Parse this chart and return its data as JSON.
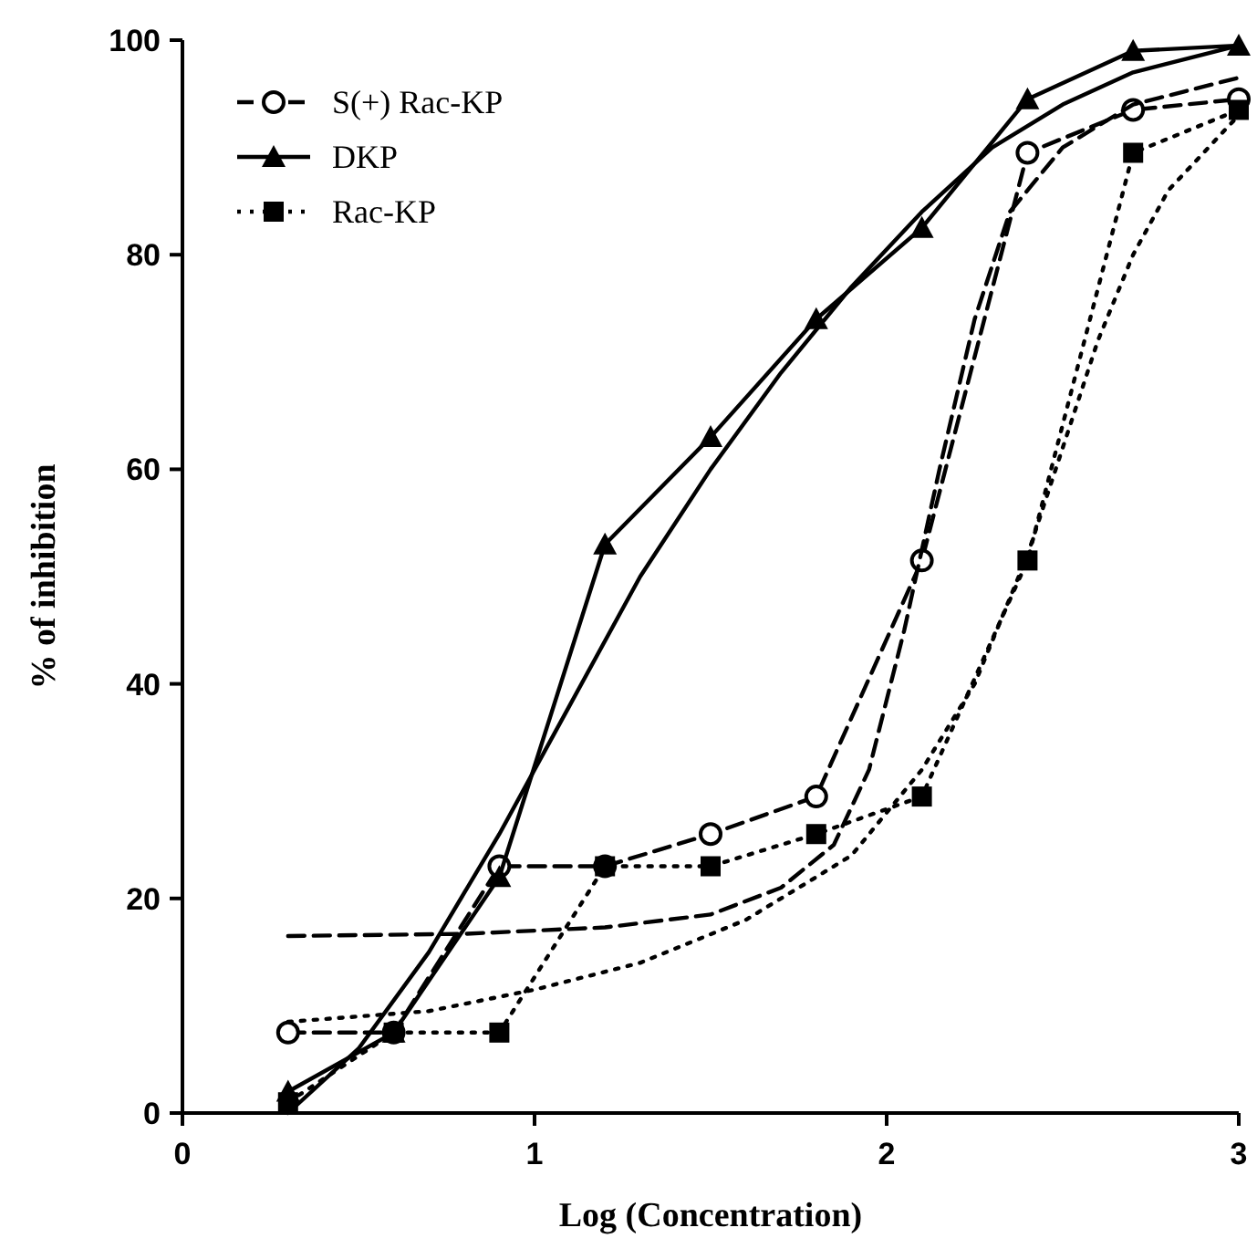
{
  "chart_data": {
    "type": "line",
    "xlabel": "Log (Concentration)",
    "ylabel": "% of inhibition",
    "xlim": [
      0,
      3
    ],
    "xticks": [
      0,
      1,
      2,
      3
    ],
    "ylim": [
      0,
      100
    ],
    "yticks": [
      0,
      20,
      40,
      60,
      80,
      100
    ],
    "grid": false,
    "legend": "top left",
    "series": [
      {
        "name": "S(+) Rac-KP",
        "color": "#000000",
        "marker": "circle",
        "line_style": "dashed",
        "x": [
          0.3,
          0.6,
          0.9,
          1.2,
          1.5,
          1.8,
          2.1,
          2.4,
          2.7,
          3.0
        ],
        "values": [
          7.5,
          7.5,
          23,
          23,
          26,
          29.5,
          51.5,
          89.5,
          93.5,
          94.5
        ]
      },
      {
        "name": "DKP",
        "color": "#000000",
        "marker": "triangle",
        "line_style": "solid",
        "x": [
          0.3,
          0.6,
          0.9,
          1.2,
          1.5,
          1.8,
          2.1,
          2.4,
          2.7,
          3.0
        ],
        "values": [
          2,
          7.5,
          22,
          53,
          63,
          74,
          82.5,
          94.5,
          99,
          99.5
        ]
      },
      {
        "name": "Rac-KP",
        "color": "#000000",
        "marker": "square",
        "line_style": "dotted",
        "x": [
          0.3,
          0.6,
          0.9,
          1.2,
          1.5,
          1.8,
          2.1,
          2.4,
          2.7,
          3.0
        ],
        "values": [
          1,
          7.5,
          7.5,
          23,
          23,
          26,
          29.5,
          51.5,
          89.5,
          93.5
        ]
      },
      {
        "type": "line",
        "color": "#000000",
        "marker": "none",
        "line_style": "dashed",
        "x": [
          0.3,
          0.8,
          1.2,
          1.5,
          1.7,
          1.85,
          1.95,
          2.05,
          2.15,
          2.25,
          2.35,
          2.5,
          2.7,
          3.0
        ],
        "values": [
          16.5,
          16.7,
          17.3,
          18.5,
          21,
          25,
          32,
          45,
          60,
          74,
          84,
          90,
          94,
          96.5
        ]
      },
      {
        "type": "line",
        "color": "#000000",
        "marker": "none",
        "line_style": "solid",
        "x": [
          0.3,
          0.5,
          0.7,
          0.9,
          1.1,
          1.3,
          1.5,
          1.7,
          1.9,
          2.1,
          2.3,
          2.5,
          2.7,
          3.0
        ],
        "values": [
          0,
          6,
          15,
          26,
          38,
          50,
          60,
          69,
          77,
          84,
          90,
          94,
          97,
          99.5
        ]
      },
      {
        "type": "line",
        "color": "#000000",
        "marker": "none",
        "line_style": "dotted",
        "x": [
          0.3,
          0.7,
          1.0,
          1.3,
          1.6,
          1.9,
          2.1,
          2.25,
          2.4,
          2.5,
          2.6,
          2.7,
          2.8,
          3.0
        ],
        "values": [
          8.5,
          9.5,
          11.5,
          14,
          18,
          24,
          32,
          40,
          52,
          62,
          72,
          80,
          86,
          93
        ]
      }
    ]
  }
}
